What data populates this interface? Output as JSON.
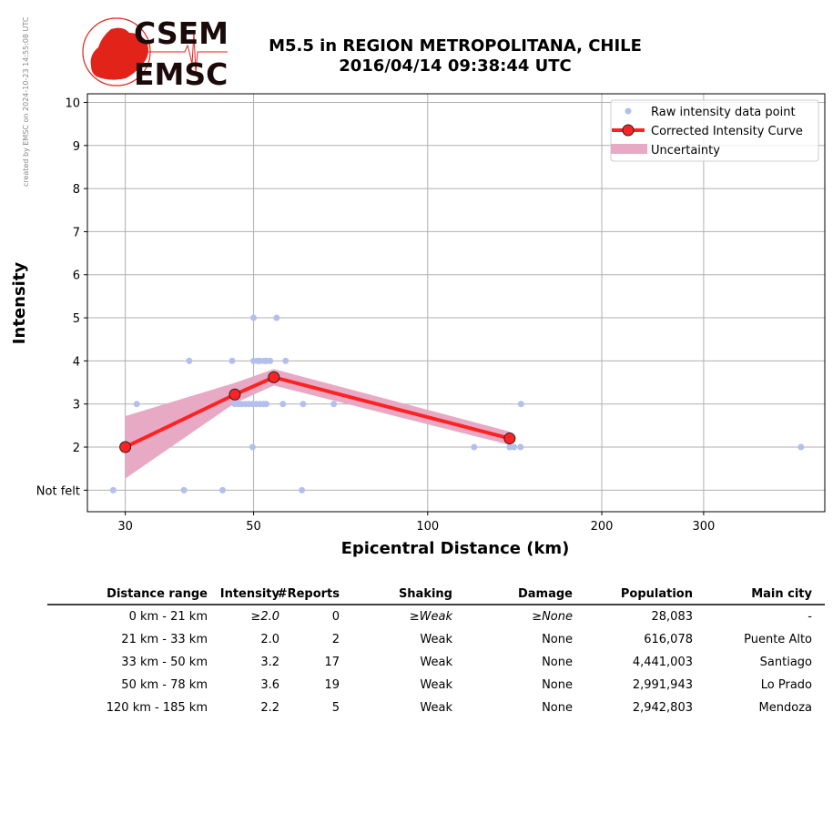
{
  "watermark": "created by EMSC on 2024-10-23 14:55:08 UTC",
  "logo": {
    "line1": "CSEM",
    "line2": "EMSC"
  },
  "title": {
    "line1": "M5.5 in REGION METROPOLITANA, CHILE",
    "line2": "2016/04/14 09:38:44 UTC"
  },
  "colors": {
    "raw": "#b3bfec",
    "curve": "#ff2222",
    "band": "#e8a9c4",
    "grid": "#b0b0b0",
    "logo_red": "#e2231a"
  },
  "chart_data": {
    "type": "scatter",
    "xscale": "log",
    "xlabel": "Epicentral Distance (km)",
    "ylabel": "Intensity",
    "xlim": [
      25.8,
      486
    ],
    "ylim": [
      0.5,
      10.2
    ],
    "xticks": [
      {
        "v": 30,
        "label": "30"
      },
      {
        "v": 50,
        "label": "50"
      },
      {
        "v": 100,
        "label": "100"
      },
      {
        "v": 200,
        "label": "200"
      },
      {
        "v": 300,
        "label": "300"
      }
    ],
    "yticks": [
      {
        "v": 1,
        "label": "Not felt"
      },
      {
        "v": 2,
        "label": "2"
      },
      {
        "v": 3,
        "label": "3"
      },
      {
        "v": 4,
        "label": "4"
      },
      {
        "v": 5,
        "label": "5"
      },
      {
        "v": 6,
        "label": "6"
      },
      {
        "v": 7,
        "label": "7"
      },
      {
        "v": 8,
        "label": "8"
      },
      {
        "v": 9,
        "label": "9"
      },
      {
        "v": 10,
        "label": "10"
      }
    ],
    "grid": true,
    "legend_position": "top-right",
    "legend": [
      "Raw intensity data point",
      "Corrected Intensity Curve",
      "Uncertainty"
    ],
    "raw_points": [
      [
        28.6,
        1
      ],
      [
        37.9,
        1
      ],
      [
        44.2,
        1
      ],
      [
        60.6,
        1
      ],
      [
        49.8,
        2
      ],
      [
        120.3,
        2
      ],
      [
        138.6,
        2
      ],
      [
        141,
        2
      ],
      [
        144.7,
        2
      ],
      [
        442,
        2
      ],
      [
        31.4,
        3
      ],
      [
        46.4,
        3
      ],
      [
        47.1,
        3
      ],
      [
        47.7,
        3
      ],
      [
        48.4,
        3
      ],
      [
        49.1,
        3
      ],
      [
        49.8,
        3
      ],
      [
        50.5,
        3
      ],
      [
        51.3,
        3
      ],
      [
        52.0,
        3
      ],
      [
        52.6,
        3
      ],
      [
        56.2,
        3
      ],
      [
        60.9,
        3
      ],
      [
        68.8,
        3
      ],
      [
        145,
        3
      ],
      [
        38.7,
        4
      ],
      [
        45.9,
        4
      ],
      [
        50.0,
        4
      ],
      [
        50.8,
        4
      ],
      [
        51.3,
        4
      ],
      [
        52.2,
        4
      ],
      [
        52.6,
        4
      ],
      [
        53.4,
        4
      ],
      [
        56.8,
        4
      ],
      [
        50.0,
        5
      ],
      [
        54.8,
        5
      ]
    ],
    "curve": {
      "x": [
        30,
        46.4,
        54.2,
        138.6
      ],
      "y": [
        2.0,
        3.22,
        3.62,
        2.2
      ]
    },
    "band": {
      "x": [
        30,
        46.4,
        54.2,
        138.6
      ],
      "upper": [
        2.72,
        3.49,
        3.81,
        2.36
      ],
      "lower": [
        1.27,
        3.02,
        3.43,
        2.05
      ]
    }
  },
  "table": {
    "headers": [
      "Distance range",
      "Intensity",
      "#Reports",
      "Shaking",
      "Damage",
      "Population",
      "Main city"
    ],
    "rows": [
      {
        "cells": [
          "0 km -   21 km",
          "≥2.0",
          "0",
          "≥Weak",
          "≥None",
          "28,083",
          "-"
        ],
        "italic": true
      },
      {
        "cells": [
          "21 km -   33 km",
          "2.0",
          "2",
          "Weak",
          "None",
          "616,078",
          "Puente Alto"
        ],
        "italic": false
      },
      {
        "cells": [
          "33 km -   50 km",
          "3.2",
          "17",
          "Weak",
          "None",
          "4,441,003",
          "Santiago"
        ],
        "italic": false
      },
      {
        "cells": [
          "50 km -   78 km",
          "3.6",
          "19",
          "Weak",
          "None",
          "2,991,943",
          "Lo Prado"
        ],
        "italic": false
      },
      {
        "cells": [
          "120 km -  185 km",
          "2.2",
          "5",
          "Weak",
          "None",
          "2,942,803",
          "Mendoza"
        ],
        "italic": false
      }
    ]
  }
}
